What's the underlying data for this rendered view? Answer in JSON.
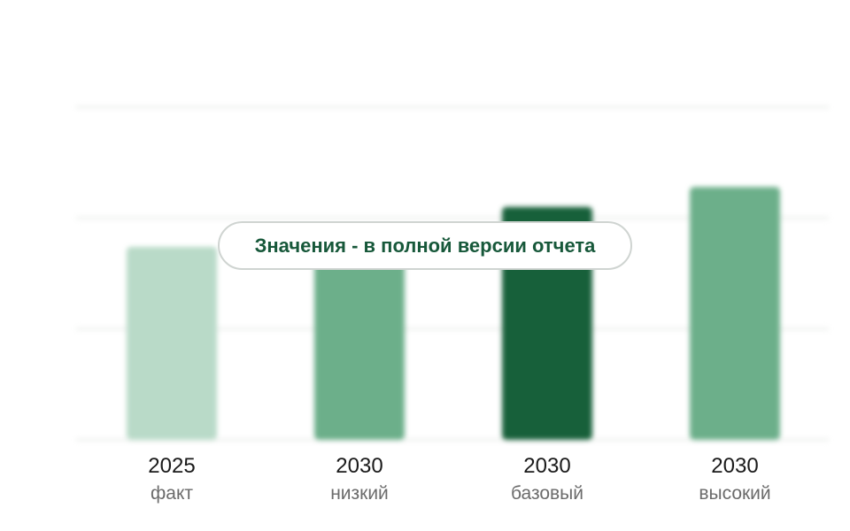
{
  "chart_data": {
    "type": "bar",
    "categories": [
      "2025",
      "2030",
      "2030",
      "2030"
    ],
    "subcategories": [
      "факт",
      "низкий",
      "базовый",
      "высокий"
    ],
    "values": [
      58,
      63,
      70,
      76
    ],
    "bar_colors": [
      "#b9dac8",
      "#6caf8a",
      "#17603a",
      "#6caf8a"
    ],
    "ylim": [
      0,
      100
    ],
    "grid": true,
    "values_hidden": true
  },
  "overlay": {
    "text": "Значения - в полной версии отчета",
    "text_color": "#17583a"
  }
}
